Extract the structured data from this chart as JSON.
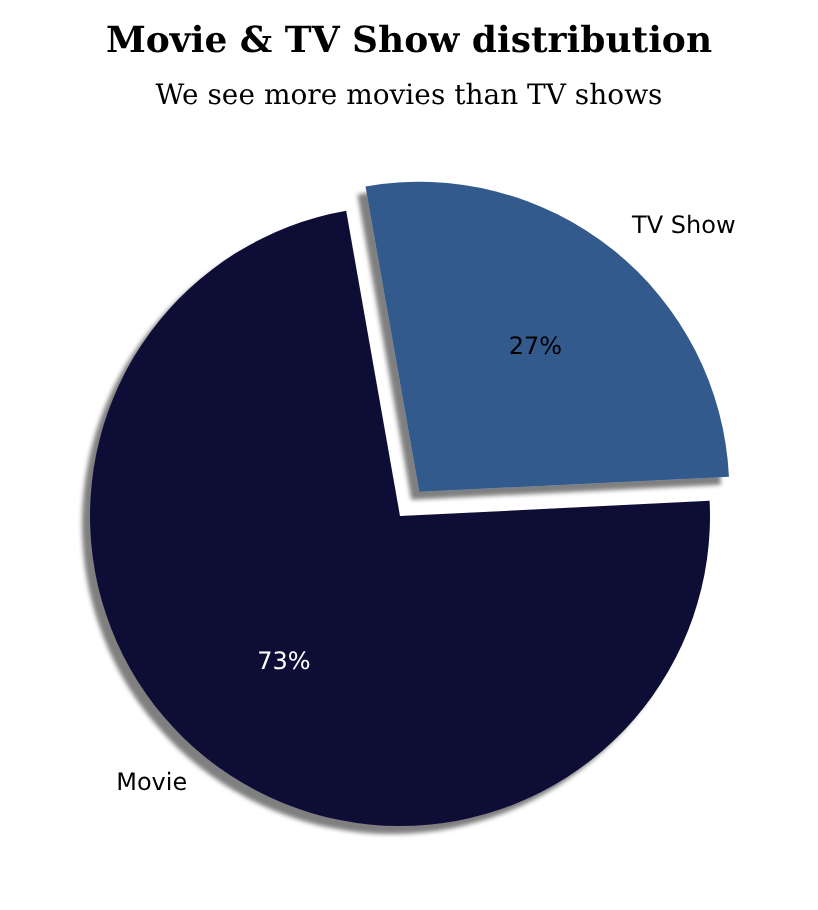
{
  "chart_data": {
    "type": "pie",
    "title": "Movie & TV Show distribution",
    "subtitle": "We see more movies than TV shows",
    "categories": [
      "Movie",
      "TV Show"
    ],
    "values": [
      73,
      27
    ],
    "colors": [
      "#0e1035",
      "#325a8c"
    ],
    "value_labels": [
      "73%",
      "27%"
    ]
  }
}
